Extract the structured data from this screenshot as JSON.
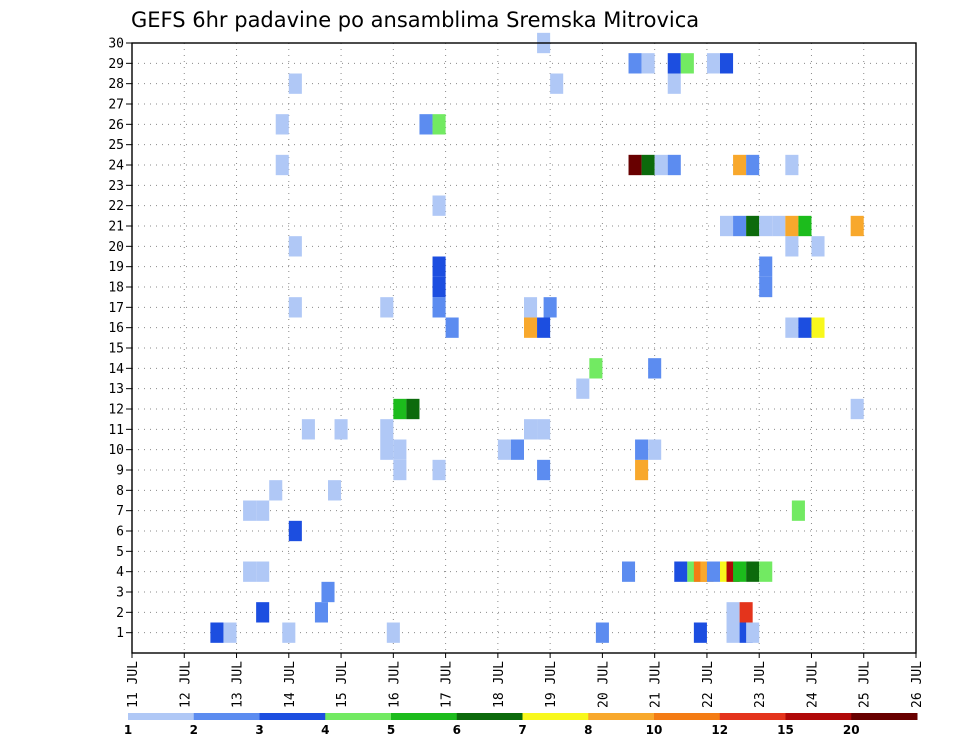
{
  "chart_data": {
    "type": "heatmap",
    "title": "GEFS 6hr padavine po ansamblima Sremska Mitrovica",
    "xlabel": "",
    "ylabel": "",
    "x_ticks": [
      "11 JUL",
      "12 JUL",
      "13 JUL",
      "14 JUL",
      "15 JUL",
      "16 JUL",
      "17 JUL",
      "18 JUL",
      "19 JUL",
      "20 JUL",
      "21 JUL",
      "22 JUL",
      "23 JUL",
      "24 JUL",
      "25 JUL",
      "26 JUL"
    ],
    "xlim_days": [
      11,
      26
    ],
    "ylim": [
      0,
      30
    ],
    "y_ticks": [
      1,
      2,
      3,
      4,
      5,
      6,
      7,
      8,
      9,
      10,
      11,
      12,
      13,
      14,
      15,
      16,
      17,
      18,
      19,
      20,
      21,
      22,
      23,
      24,
      25,
      26,
      27,
      28,
      29,
      30
    ],
    "grid": true,
    "legend": {
      "position": "bottom",
      "tick_labels": [
        "1",
        "2",
        "3",
        "4",
        "5",
        "6",
        "7",
        "8",
        "10",
        "12",
        "15",
        "20"
      ],
      "colors": [
        "#b0c8f6",
        "#5c8cf0",
        "#1c4ee0",
        "#72ea62",
        "#1cbc1c",
        "#0c6a0c",
        "#f8f81c",
        "#f8a82c",
        "#f47c14",
        "#e4341c",
        "#b00808",
        "#680000"
      ]
    },
    "cells_note": "[day, member, class]; day = lead time in days starting 11 JUL (6-hour steps of 0.25), member = ensemble number, class = index into legend.colors",
    "cells": [
      [
        12.625,
        1,
        2
      ],
      [
        12.875,
        1,
        0
      ],
      [
        14.0,
        1,
        0
      ],
      [
        16.0,
        1,
        0
      ],
      [
        20.0,
        1,
        1
      ],
      [
        21.875,
        1,
        2
      ],
      [
        22.5,
        1,
        0
      ],
      [
        22.75,
        1,
        2
      ],
      [
        22.875,
        1,
        0
      ],
      [
        13.5,
        2,
        2
      ],
      [
        14.625,
        2,
        1
      ],
      [
        22.5,
        2,
        0
      ],
      [
        22.75,
        2,
        9
      ],
      [
        14.75,
        3,
        1
      ],
      [
        13.25,
        4,
        0
      ],
      [
        13.5,
        4,
        0
      ],
      [
        20.5,
        4,
        1
      ],
      [
        21.5,
        4,
        2
      ],
      [
        21.75,
        4,
        3
      ],
      [
        21.875,
        4,
        8
      ],
      [
        22.0,
        4,
        7
      ],
      [
        22.125,
        4,
        1
      ],
      [
        22.375,
        4,
        6
      ],
      [
        22.5,
        4,
        10
      ],
      [
        22.625,
        4,
        4
      ],
      [
        22.875,
        4,
        5
      ],
      [
        23.125,
        4,
        3
      ],
      [
        14.125,
        6,
        2
      ],
      [
        13.25,
        7,
        0
      ],
      [
        13.5,
        7,
        0
      ],
      [
        23.75,
        7,
        3
      ],
      [
        13.75,
        8,
        0
      ],
      [
        14.875,
        8,
        0
      ],
      [
        16.125,
        9,
        0
      ],
      [
        16.875,
        9,
        0
      ],
      [
        18.875,
        9,
        1
      ],
      [
        20.75,
        9,
        7
      ],
      [
        15.875,
        10,
        0
      ],
      [
        16.125,
        10,
        0
      ],
      [
        18.125,
        10,
        0
      ],
      [
        18.375,
        10,
        1
      ],
      [
        20.75,
        10,
        1
      ],
      [
        21.0,
        10,
        0
      ],
      [
        14.375,
        11,
        0
      ],
      [
        15.0,
        11,
        0
      ],
      [
        15.875,
        11,
        0
      ],
      [
        18.625,
        11,
        0
      ],
      [
        18.875,
        11,
        0
      ],
      [
        16.125,
        12,
        4
      ],
      [
        16.375,
        12,
        5
      ],
      [
        24.875,
        12,
        0
      ],
      [
        19.625,
        13,
        0
      ],
      [
        19.875,
        14,
        3
      ],
      [
        21.0,
        14,
        1
      ],
      [
        23.625,
        16,
        0
      ],
      [
        23.875,
        16,
        2
      ],
      [
        24.125,
        16,
        6
      ],
      [
        17.125,
        16,
        1
      ],
      [
        18.625,
        16,
        7
      ],
      [
        18.875,
        16,
        2
      ],
      [
        14.125,
        17,
        0
      ],
      [
        15.875,
        17,
        0
      ],
      [
        16.875,
        17,
        1
      ],
      [
        18.625,
        17,
        0
      ],
      [
        19.0,
        17,
        1
      ],
      [
        16.875,
        18,
        2
      ],
      [
        23.125,
        18,
        1
      ],
      [
        16.875,
        19,
        2
      ],
      [
        23.125,
        19,
        1
      ],
      [
        14.125,
        20,
        0
      ],
      [
        23.625,
        20,
        0
      ],
      [
        24.125,
        20,
        0
      ],
      [
        22.375,
        21,
        0
      ],
      [
        22.625,
        21,
        1
      ],
      [
        22.875,
        21,
        5
      ],
      [
        23.125,
        21,
        0
      ],
      [
        23.375,
        21,
        0
      ],
      [
        23.625,
        21,
        7
      ],
      [
        23.875,
        21,
        4
      ],
      [
        24.875,
        21,
        7
      ],
      [
        16.875,
        22,
        0
      ],
      [
        13.875,
        24,
        0
      ],
      [
        20.625,
        24,
        11
      ],
      [
        20.875,
        24,
        5
      ],
      [
        21.125,
        24,
        0
      ],
      [
        21.375,
        24,
        1
      ],
      [
        22.625,
        24,
        7
      ],
      [
        22.875,
        24,
        1
      ],
      [
        23.625,
        24,
        0
      ],
      [
        13.875,
        26,
        0
      ],
      [
        16.625,
        26,
        1
      ],
      [
        16.875,
        26,
        3
      ],
      [
        14.125,
        28,
        0
      ],
      [
        19.125,
        28,
        0
      ],
      [
        21.375,
        28,
        0
      ],
      [
        20.625,
        29,
        1
      ],
      [
        20.875,
        29,
        0
      ],
      [
        21.375,
        29,
        2
      ],
      [
        21.625,
        29,
        3
      ],
      [
        22.125,
        29,
        0
      ],
      [
        22.375,
        29,
        2
      ],
      [
        18.875,
        30,
        0
      ]
    ]
  }
}
